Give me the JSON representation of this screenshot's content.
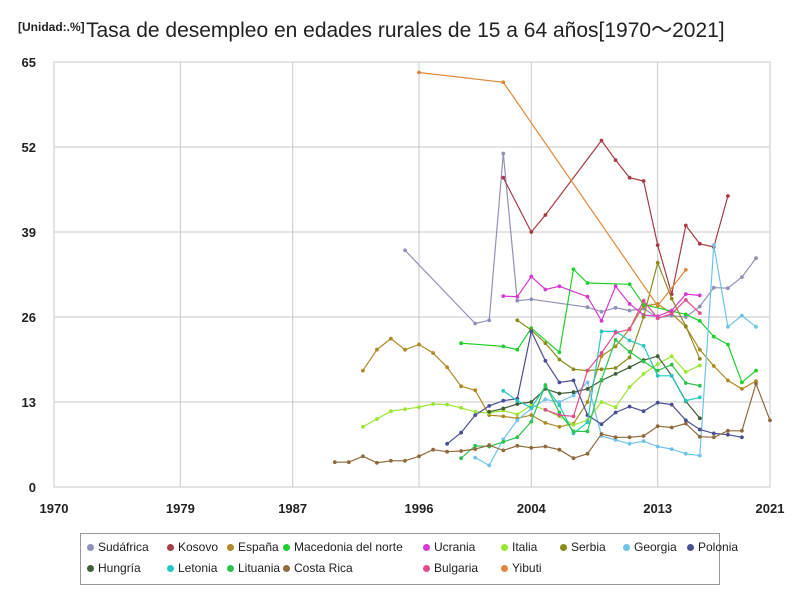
{
  "chart_data": {
    "type": "line",
    "title": "Tasa de desempleo en edades rurales de 15 a 64 años[1970〜2021]",
    "unit_label": "[Unidad:.%]",
    "xlabel": "",
    "ylabel": "",
    "xlim": [
      1970,
      2021
    ],
    "ylim": [
      0,
      65
    ],
    "x_ticks": [
      "1970",
      "1979",
      "1987",
      "1996",
      "2004",
      "2013",
      "2021"
    ],
    "y_ticks": [
      "0",
      "13",
      "26",
      "39",
      "52",
      "65"
    ],
    "grid": true,
    "legend_position": "bottom",
    "series": [
      {
        "name": "Sudáfrica",
        "color": "#8f91b8",
        "points": [
          [
            1995,
            36.2
          ],
          [
            2000,
            25
          ],
          [
            2001,
            25.5
          ],
          [
            2002,
            51
          ],
          [
            2003,
            28.5
          ],
          [
            2004,
            28.7
          ],
          [
            2008,
            27.5
          ],
          [
            2009,
            26.8
          ],
          [
            2010,
            27.4
          ],
          [
            2011,
            27
          ],
          [
            2012,
            27.3
          ],
          [
            2013,
            25.9
          ],
          [
            2014,
            26.2
          ],
          [
            2015,
            26
          ],
          [
            2016,
            27.6
          ],
          [
            2017,
            30.5
          ],
          [
            2018,
            30.4
          ],
          [
            2019,
            32.1
          ],
          [
            2020,
            35
          ]
        ]
      },
      {
        "name": "Kosovo",
        "color": "#a63c45",
        "points": [
          [
            2002,
            47.3
          ],
          [
            2004,
            39
          ],
          [
            2005,
            41.6
          ],
          [
            2009,
            53
          ],
          [
            2010,
            50
          ],
          [
            2011,
            47.3
          ],
          [
            2012,
            46.8
          ],
          [
            2013,
            37
          ],
          [
            2014,
            29.5
          ],
          [
            2015,
            40
          ],
          [
            2016,
            37.2
          ],
          [
            2017,
            36.7
          ],
          [
            2018,
            44.5
          ]
        ]
      },
      {
        "name": "España",
        "color": "#ad8a24",
        "points": [
          [
            1992,
            17.8
          ],
          [
            1993,
            21
          ],
          [
            1994,
            22.7
          ],
          [
            1995,
            21
          ],
          [
            1996,
            21.8
          ],
          [
            1997,
            20.5
          ],
          [
            1998,
            18.3
          ],
          [
            1999,
            15.4
          ],
          [
            2000,
            14.8
          ],
          [
            2001,
            11
          ],
          [
            2002,
            10.8
          ],
          [
            2003,
            10.5
          ],
          [
            2004,
            11
          ],
          [
            2005,
            9.8
          ],
          [
            2006,
            9.2
          ],
          [
            2007,
            9.7
          ],
          [
            2008,
            13
          ],
          [
            2009,
            20
          ],
          [
            2010,
            21.5
          ],
          [
            2011,
            24.2
          ],
          [
            2012,
            27.7
          ],
          [
            2013,
            28
          ],
          [
            2014,
            26.5
          ],
          [
            2015,
            24.5
          ],
          [
            2016,
            21
          ],
          [
            2017,
            18.5
          ],
          [
            2018,
            16.3
          ],
          [
            2019,
            15
          ],
          [
            2020,
            16.2
          ]
        ]
      },
      {
        "name": "Macedonia del norte",
        "color": "#1fd02c",
        "points": [
          [
            1999,
            22
          ],
          [
            2002,
            21.5
          ],
          [
            2003,
            21
          ],
          [
            2004,
            24.3
          ],
          [
            2006,
            20.6
          ],
          [
            2007,
            33.3
          ],
          [
            2008,
            31.2
          ],
          [
            2011,
            31
          ],
          [
            2012,
            27.9
          ],
          [
            2014,
            26.9
          ],
          [
            2015,
            26.4
          ],
          [
            2016,
            25.4
          ],
          [
            2017,
            23
          ],
          [
            2018,
            21.8
          ],
          [
            2019,
            16
          ],
          [
            2020,
            17.8
          ]
        ]
      },
      {
        "name": "Ucrania",
        "color": "#d738d0",
        "points": [
          [
            2002,
            29.2
          ],
          [
            2003,
            29.1
          ],
          [
            2004,
            32.2
          ],
          [
            2005,
            30.2
          ],
          [
            2006,
            30.7
          ],
          [
            2008,
            29.1
          ],
          [
            2009,
            25.4
          ],
          [
            2010,
            30.7
          ],
          [
            2011,
            28
          ],
          [
            2012,
            26.3
          ],
          [
            2013,
            26.1
          ],
          [
            2014,
            27
          ],
          [
            2015,
            29.5
          ],
          [
            2016,
            29.3
          ]
        ]
      },
      {
        "name": "Italia",
        "color": "#9be632",
        "points": [
          [
            1992,
            9.2
          ],
          [
            1993,
            10.4
          ],
          [
            1994,
            11.6
          ],
          [
            1995,
            11.9
          ],
          [
            1996,
            12.2
          ],
          [
            1997,
            12.7
          ],
          [
            1998,
            12.6
          ],
          [
            1999,
            12.1
          ],
          [
            2000,
            11.5
          ],
          [
            2001,
            11.3
          ],
          [
            2002,
            11.7
          ],
          [
            2003,
            11.1
          ],
          [
            2004,
            12.5
          ],
          [
            2005,
            11.8
          ],
          [
            2006,
            10.8
          ],
          [
            2007,
            9.5
          ],
          [
            2008,
            10.2
          ],
          [
            2009,
            13
          ],
          [
            2010,
            12.2
          ],
          [
            2011,
            15.3
          ],
          [
            2012,
            17.3
          ],
          [
            2013,
            18.8
          ],
          [
            2014,
            20
          ],
          [
            2015,
            17.6
          ],
          [
            2016,
            18.6
          ]
        ]
      },
      {
        "name": "Serbia",
        "color": "#8a8d1e",
        "points": [
          [
            2003,
            25.5
          ],
          [
            2004,
            24
          ],
          [
            2005,
            22
          ],
          [
            2006,
            19.5
          ],
          [
            2007,
            18
          ],
          [
            2008,
            17.8
          ],
          [
            2009,
            18
          ],
          [
            2010,
            18.2
          ],
          [
            2011,
            19.8
          ],
          [
            2012,
            26
          ],
          [
            2013,
            34.3
          ],
          [
            2014,
            28.8
          ],
          [
            2015,
            24.6
          ],
          [
            2016,
            19.6
          ]
        ]
      },
      {
        "name": "Georgia",
        "color": "#6fc3ea",
        "points": [
          [
            2000,
            4.5
          ],
          [
            2001,
            3.3
          ],
          [
            2002,
            7.3
          ],
          [
            2003,
            10.2
          ],
          [
            2004,
            12
          ],
          [
            2005,
            13.4
          ],
          [
            2006,
            13
          ],
          [
            2007,
            14
          ],
          [
            2008,
            16
          ],
          [
            2009,
            7.8
          ],
          [
            2010,
            7.2
          ],
          [
            2011,
            6.6
          ],
          [
            2012,
            7
          ],
          [
            2013,
            6.2
          ],
          [
            2014,
            5.8
          ],
          [
            2015,
            5.1
          ],
          [
            2016,
            4.8
          ],
          [
            2017,
            37
          ],
          [
            2018,
            24.5
          ],
          [
            2019,
            26.2
          ],
          [
            2020,
            24.5
          ]
        ]
      },
      {
        "name": "Polonia",
        "color": "#4a4f93",
        "points": [
          [
            1998,
            6.6
          ],
          [
            1999,
            8.3
          ],
          [
            2000,
            11
          ],
          [
            2001,
            12.4
          ],
          [
            2002,
            13.2
          ],
          [
            2003,
            13.5
          ],
          [
            2004,
            23.8
          ],
          [
            2005,
            19.3
          ],
          [
            2006,
            16
          ],
          [
            2007,
            16.3
          ],
          [
            2008,
            11
          ],
          [
            2009,
            9.6
          ],
          [
            2010,
            11.4
          ],
          [
            2011,
            12.3
          ],
          [
            2012,
            11.6
          ],
          [
            2013,
            12.9
          ],
          [
            2014,
            12.6
          ],
          [
            2015,
            10.2
          ],
          [
            2016,
            8.8
          ],
          [
            2017,
            8.2
          ],
          [
            2018,
            8
          ],
          [
            2019,
            7.6
          ]
        ]
      },
      {
        "name": "Hungría",
        "color": "#3f5e36",
        "points": [
          [
            2001,
            11.5
          ],
          [
            2002,
            12
          ],
          [
            2003,
            12.7
          ],
          [
            2004,
            13
          ],
          [
            2005,
            15
          ],
          [
            2006,
            14.3
          ],
          [
            2007,
            14.5
          ],
          [
            2008,
            15
          ],
          [
            2009,
            16.3
          ],
          [
            2010,
            17.3
          ],
          [
            2011,
            18.3
          ],
          [
            2012,
            19.4
          ],
          [
            2013,
            20
          ],
          [
            2014,
            17
          ],
          [
            2015,
            13.1
          ],
          [
            2016,
            10.5
          ]
        ]
      },
      {
        "name": "Letonia",
        "color": "#27c6be",
        "points": [
          [
            2002,
            14.7
          ],
          [
            2003,
            13.2
          ],
          [
            2004,
            12.1
          ],
          [
            2005,
            15.4
          ],
          [
            2006,
            12.5
          ],
          [
            2007,
            8.2
          ],
          [
            2008,
            9.9
          ],
          [
            2009,
            23.8
          ],
          [
            2010,
            23.8
          ],
          [
            2011,
            22.4
          ],
          [
            2012,
            21.6
          ],
          [
            2013,
            17
          ],
          [
            2014,
            17
          ],
          [
            2015,
            13.2
          ],
          [
            2016,
            13.7
          ]
        ]
      },
      {
        "name": "Lituania",
        "color": "#2ec24e",
        "points": [
          [
            1999,
            4.4
          ],
          [
            2000,
            6.3
          ],
          [
            2001,
            6.2
          ],
          [
            2002,
            6.9
          ],
          [
            2003,
            7.6
          ],
          [
            2004,
            10
          ],
          [
            2005,
            15.6
          ],
          [
            2006,
            11.4
          ],
          [
            2007,
            8.5
          ],
          [
            2008,
            8.5
          ],
          [
            2009,
            16.4
          ],
          [
            2010,
            22.5
          ],
          [
            2011,
            20.7
          ],
          [
            2012,
            19.2
          ],
          [
            2013,
            17.8
          ],
          [
            2014,
            18.7
          ],
          [
            2015,
            15.9
          ],
          [
            2016,
            15.5
          ]
        ]
      },
      {
        "name": "Costa Rica",
        "color": "#8e6a3c",
        "points": [
          [
            1990,
            3.8
          ],
          [
            1991,
            3.8
          ],
          [
            1992,
            4.7
          ],
          [
            1993,
            3.7
          ],
          [
            1994,
            4
          ],
          [
            1995,
            4
          ],
          [
            1996,
            4.7
          ],
          [
            1997,
            5.7
          ],
          [
            1998,
            5.4
          ],
          [
            1999,
            5.5
          ],
          [
            2000,
            5.8
          ],
          [
            2001,
            6.4
          ],
          [
            2002,
            5.6
          ],
          [
            2003,
            6.3
          ],
          [
            2004,
            6
          ],
          [
            2005,
            6.2
          ],
          [
            2006,
            5.7
          ],
          [
            2007,
            4.4
          ],
          [
            2008,
            5.1
          ],
          [
            2009,
            8.1
          ],
          [
            2010,
            7.6
          ],
          [
            2011,
            7.6
          ],
          [
            2012,
            7.8
          ],
          [
            2013,
            9.3
          ],
          [
            2014,
            9.1
          ],
          [
            2015,
            9.7
          ],
          [
            2016,
            7.7
          ],
          [
            2017,
            7.6
          ],
          [
            2018,
            8.6
          ],
          [
            2019,
            8.6
          ],
          [
            2020,
            15.8
          ],
          [
            2021,
            10.2
          ]
        ]
      },
      {
        "name": "Bulgaria",
        "color": "#e04d8f",
        "points": [
          [
            2005,
            11.8
          ],
          [
            2006,
            11
          ],
          [
            2007,
            10.8
          ],
          [
            2008,
            17.8
          ],
          [
            2009,
            20.5
          ],
          [
            2010,
            23.6
          ],
          [
            2011,
            24.1
          ],
          [
            2012,
            28.5
          ],
          [
            2013,
            25.8
          ],
          [
            2014,
            26.5
          ],
          [
            2015,
            28.6
          ],
          [
            2016,
            26.6
          ]
        ]
      },
      {
        "name": "Yibuti",
        "color": "#e0883a",
        "points": [
          [
            1996,
            63.4
          ],
          [
            2002,
            61.9
          ],
          [
            2013,
            27.7
          ],
          [
            2015,
            33.2
          ]
        ]
      }
    ]
  }
}
